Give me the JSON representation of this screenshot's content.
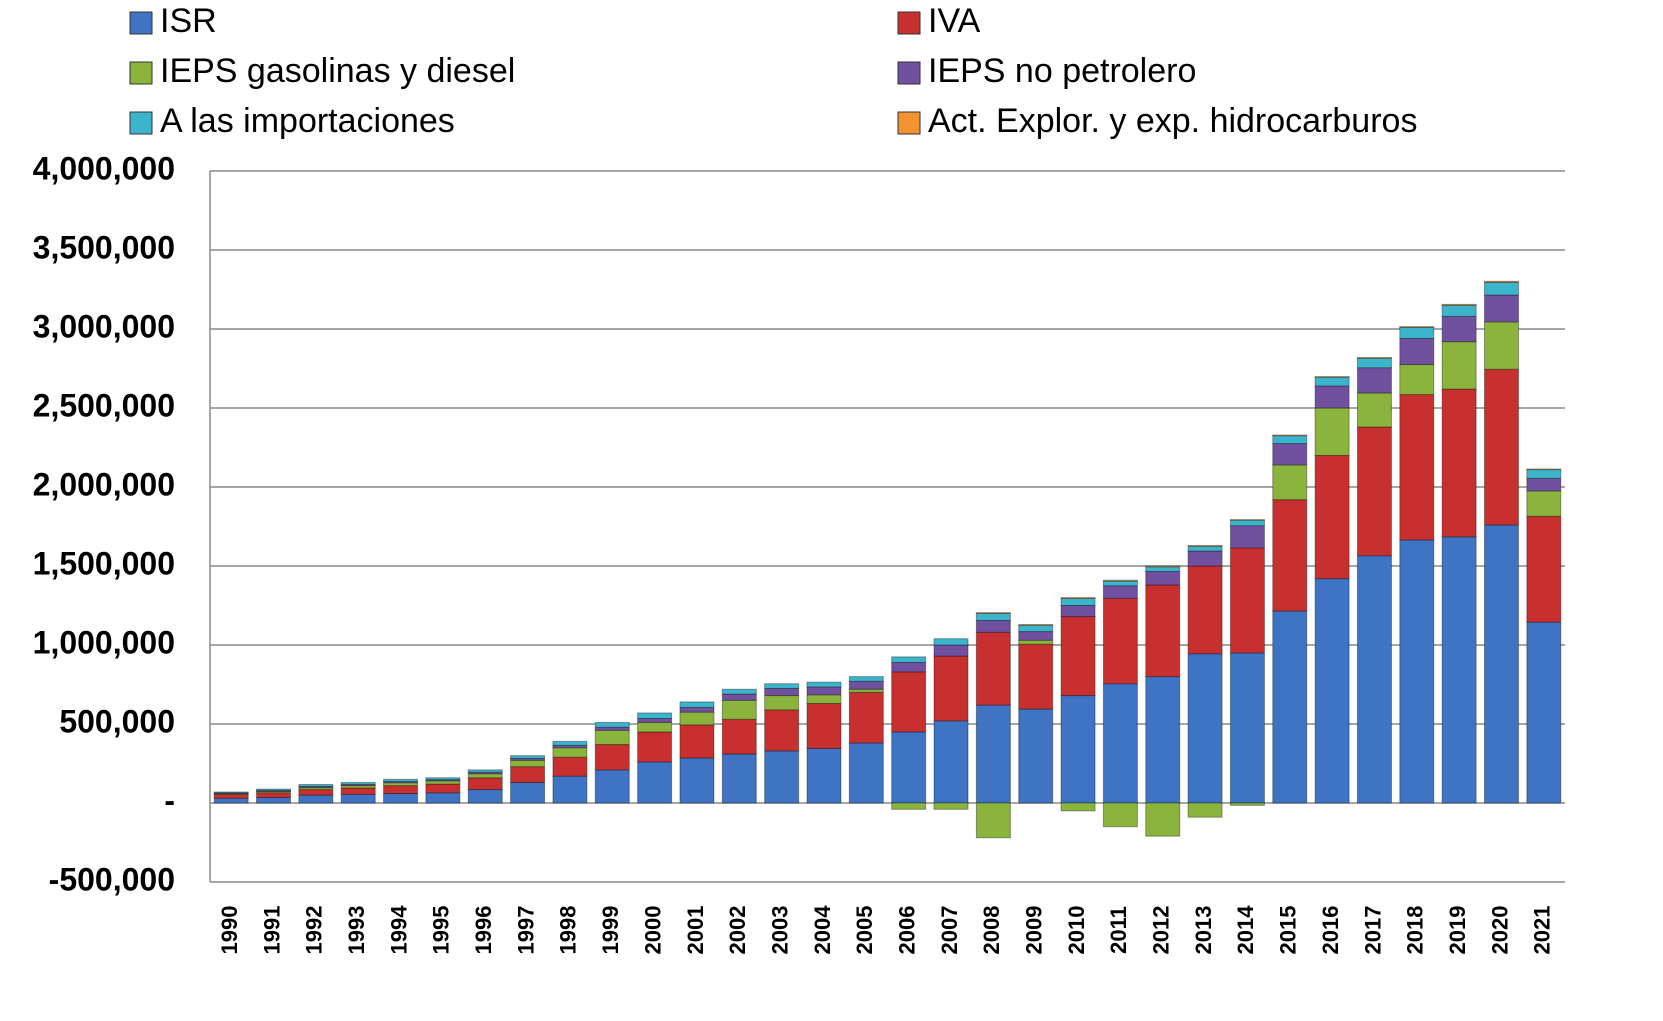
{
  "chart_data": {
    "type": "stacked_bar",
    "categories": [
      "1990",
      "1991",
      "1992",
      "1993",
      "1994",
      "1995",
      "1996",
      "1997",
      "1998",
      "1999",
      "2000",
      "2001",
      "2002",
      "2003",
      "2004",
      "2005",
      "2006",
      "2007",
      "2008",
      "2009",
      "2010",
      "2011",
      "2012",
      "2013",
      "2014",
      "2015",
      "2016",
      "2017",
      "2018",
      "2019",
      "2020",
      "2021"
    ],
    "series": [
      {
        "name": "ISR",
        "color": "#3f73c3",
        "values": [
          30000,
          35000,
          50000,
          55000,
          60000,
          65000,
          85000,
          130000,
          170000,
          210000,
          260000,
          285000,
          310000,
          330000,
          345000,
          380000,
          450000,
          520000,
          620000,
          595000,
          680000,
          755000,
          800000,
          945000,
          950000,
          1215000,
          1420000,
          1565000,
          1665000,
          1685000,
          1760000,
          1145000
        ]
      },
      {
        "name": "IVA",
        "color": "#c8302f",
        "values": [
          25000,
          30000,
          35000,
          40000,
          50000,
          55000,
          75000,
          100000,
          120000,
          160000,
          190000,
          210000,
          220000,
          260000,
          285000,
          320000,
          380000,
          410000,
          460000,
          410000,
          500000,
          540000,
          580000,
          555000,
          665000,
          705000,
          780000,
          815000,
          920000,
          935000,
          985000,
          670000
        ]
      },
      {
        "name": "IEPS  gasolinas y diesel",
        "color": "#8ab43c",
        "values": [
          5000,
          8000,
          12000,
          15000,
          18000,
          20000,
          25000,
          40000,
          60000,
          90000,
          60000,
          80000,
          120000,
          90000,
          55000,
          20000,
          -40000,
          -40000,
          -220000,
          25000,
          -50000,
          -150000,
          -210000,
          -90000,
          -15000,
          220000,
          300000,
          215000,
          190000,
          300000,
          300000,
          160000
        ]
      },
      {
        "name": "IEPS no petrolero",
        "color": "#7150a0",
        "values": [
          5000,
          7000,
          8000,
          8000,
          8000,
          8000,
          10000,
          12000,
          15000,
          20000,
          25000,
          30000,
          40000,
          45000,
          50000,
          50000,
          60000,
          70000,
          75000,
          55000,
          70000,
          80000,
          85000,
          95000,
          140000,
          135000,
          140000,
          160000,
          165000,
          160000,
          170000,
          80000
        ]
      },
      {
        "name": "A las importaciones",
        "color": "#3cb4cc",
        "values": [
          5000,
          8000,
          12000,
          12000,
          14000,
          12000,
          15000,
          18000,
          25000,
          30000,
          35000,
          35000,
          30000,
          30000,
          30000,
          30000,
          35000,
          40000,
          45000,
          40000,
          45000,
          30000,
          30000,
          30000,
          35000,
          50000,
          55000,
          60000,
          70000,
          70000,
          80000,
          55000
        ]
      },
      {
        "name": "Act. Explor. y exp. hidrocarburos",
        "color": "#f39230",
        "values": [
          0,
          0,
          0,
          0,
          0,
          0,
          0,
          0,
          0,
          0,
          0,
          0,
          0,
          0,
          0,
          0,
          0,
          0,
          5000,
          5000,
          5000,
          5000,
          5000,
          5000,
          4000,
          4000,
          4000,
          5000,
          5000,
          6000,
          7000,
          4000
        ]
      }
    ],
    "ylim": [
      -500000,
      4000000
    ],
    "yticks": [
      {
        "value": -500000,
        "label": "-500,000"
      },
      {
        "value": 0,
        "label": "-"
      },
      {
        "value": 500000,
        "label": "500,000"
      },
      {
        "value": 1000000,
        "label": "1,000,000"
      },
      {
        "value": 1500000,
        "label": "1,500,000"
      },
      {
        "value": 2000000,
        "label": "2,000,000"
      },
      {
        "value": 2500000,
        "label": "2,500,000"
      },
      {
        "value": 3000000,
        "label": "3,000,000"
      },
      {
        "value": 3500000,
        "label": "3,500,000"
      },
      {
        "value": 4000000,
        "label": "4,000,000"
      }
    ],
    "grid": true
  }
}
